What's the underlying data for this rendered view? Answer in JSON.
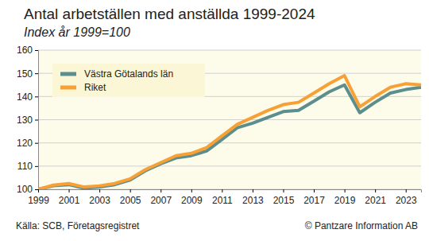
{
  "chart_data": {
    "type": "line",
    "title": "Antal arbetställen med anställda 1999-2024",
    "subtitle": "Index år 1999=100",
    "source": "Källa: SCB, Företagsregistret",
    "credit": "© Pantzare Information AB",
    "x": [
      1999,
      2000,
      2001,
      2002,
      2003,
      2004,
      2005,
      2006,
      2007,
      2008,
      2009,
      2010,
      2011,
      2012,
      2013,
      2014,
      2015,
      2016,
      2017,
      2018,
      2019,
      2020,
      2021,
      2022,
      2023,
      2024
    ],
    "series": [
      {
        "name": "Västra Götalands län",
        "color": "#5b8e8c",
        "values": [
          100,
          101.5,
          102,
          100.5,
          101,
          102,
          104,
          108,
          111,
          113.5,
          114.5,
          116.5,
          121.5,
          126.5,
          128.5,
          131,
          133.5,
          134,
          138,
          142,
          145,
          133,
          137.5,
          141.5,
          143,
          144
        ]
      },
      {
        "name": "Riket",
        "color": "#f7a035",
        "values": [
          100,
          101.8,
          102.5,
          101,
          101.5,
          102.5,
          104.5,
          108.5,
          111.5,
          114.5,
          115.5,
          118,
          123,
          128,
          131,
          134,
          136.5,
          137.5,
          141.5,
          145.5,
          149,
          135.5,
          140,
          144,
          145.5,
          145
        ]
      }
    ],
    "xlim": [
      1999,
      2024
    ],
    "xticks": [
      1999,
      2001,
      2003,
      2005,
      2007,
      2009,
      2011,
      2013,
      2015,
      2017,
      2019,
      2021,
      2023
    ],
    "ylim": [
      100,
      160
    ],
    "yticks": [
      100,
      110,
      120,
      130,
      140,
      150,
      160
    ],
    "grid": true,
    "legend": "upper left"
  }
}
